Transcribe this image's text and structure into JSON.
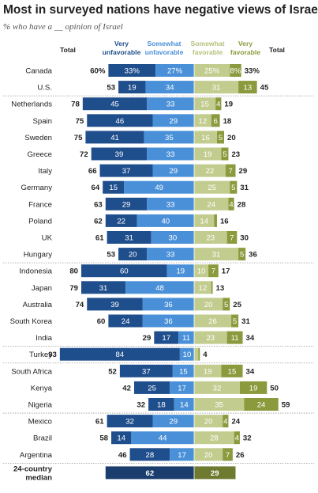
{
  "title": "Most in surveyed nations have negative views of Israel",
  "subtitle": "% who have a __ opinion of Israel",
  "colors": {
    "very_unfavorable": "#1f4e8c",
    "somewhat_unfavorable": "#4a90d9",
    "somewhat_favorable": "#c2cc8f",
    "very_favorable": "#8a9a3c",
    "median_unfavorable": "#1b3d6e",
    "median_favorable": "#6d7a2f"
  },
  "chart_data": {
    "type": "bar",
    "layout": "diverging-stacked-horizontal",
    "headers": {
      "total_left": "Total",
      "very_unfavorable": [
        "Very",
        "unfavorable"
      ],
      "somewhat_unfavorable": [
        "Somewhat",
        "unfavorable"
      ],
      "somewhat_favorable": [
        "Somewhat",
        "favorable"
      ],
      "very_favorable": [
        "Very",
        "favorable"
      ],
      "total_right": "Total"
    },
    "series": [
      {
        "name": "Very unfavorable",
        "key": "vu"
      },
      {
        "name": "Somewhat unfavorable",
        "key": "su"
      },
      {
        "name": "Somewhat favorable",
        "key": "sf"
      },
      {
        "name": "Very favorable",
        "key": "vf"
      }
    ],
    "groups": [
      [
        {
          "country": "Canada",
          "unfav_total": "60%",
          "vu": 33,
          "vu_label": "33%",
          "su": 27,
          "su_label": "27%",
          "sf": 25,
          "sf_label": "25%",
          "vf": 8,
          "vf_label": "8%",
          "fav_total": "33%"
        },
        {
          "country": "U.S.",
          "unfav_total": "53",
          "vu": 19,
          "vu_label": "19",
          "su": 34,
          "su_label": "34",
          "sf": 31,
          "sf_label": "31",
          "vf": 13,
          "vf_label": "13",
          "fav_total": "45"
        }
      ],
      [
        {
          "country": "Netherlands",
          "unfav_total": "78",
          "vu": 45,
          "vu_label": "45",
          "su": 33,
          "su_label": "33",
          "sf": 15,
          "sf_label": "15",
          "vf": 4,
          "vf_label": "4",
          "fav_total": "19"
        },
        {
          "country": "Spain",
          "unfav_total": "75",
          "vu": 46,
          "vu_label": "46",
          "su": 29,
          "su_label": "29",
          "sf": 12,
          "sf_label": "12",
          "vf": 6,
          "vf_label": "6",
          "fav_total": "18"
        },
        {
          "country": "Sweden",
          "unfav_total": "75",
          "vu": 41,
          "vu_label": "41",
          "su": 35,
          "su_label": "35",
          "sf": 16,
          "sf_label": "16",
          "vf": 5,
          "vf_label": "5",
          "fav_total": "20"
        },
        {
          "country": "Greece",
          "unfav_total": "72",
          "vu": 39,
          "vu_label": "39",
          "su": 33,
          "su_label": "33",
          "sf": 19,
          "sf_label": "19",
          "vf": 5,
          "vf_label": "5",
          "fav_total": "23"
        },
        {
          "country": "Italy",
          "unfav_total": "66",
          "vu": 37,
          "vu_label": "37",
          "su": 29,
          "su_label": "29",
          "sf": 22,
          "sf_label": "22",
          "vf": 7,
          "vf_label": "7",
          "fav_total": "29"
        },
        {
          "country": "Germany",
          "unfav_total": "64",
          "vu": 15,
          "vu_label": "15",
          "su": 49,
          "su_label": "49",
          "sf": 25,
          "sf_label": "25",
          "vf": 5,
          "vf_label": "5",
          "fav_total": "31"
        },
        {
          "country": "France",
          "unfav_total": "63",
          "vu": 29,
          "vu_label": "29",
          "su": 33,
          "su_label": "33",
          "sf": 24,
          "sf_label": "24",
          "vf": 4,
          "vf_label": "4",
          "fav_total": "28"
        },
        {
          "country": "Poland",
          "unfav_total": "62",
          "vu": 22,
          "vu_label": "22",
          "su": 40,
          "su_label": "40",
          "sf": 14,
          "sf_label": "14",
          "vf": 2,
          "vf_label": "",
          "fav_total": "16"
        },
        {
          "country": "UK",
          "unfav_total": "61",
          "vu": 31,
          "vu_label": "31",
          "su": 30,
          "su_label": "30",
          "sf": 23,
          "sf_label": "23",
          "vf": 7,
          "vf_label": "7",
          "fav_total": "30"
        },
        {
          "country": "Hungary",
          "unfav_total": "53",
          "vu": 20,
          "vu_label": "20",
          "su": 33,
          "su_label": "33",
          "sf": 31,
          "sf_label": "31",
          "vf": 5,
          "vf_label": "5",
          "fav_total": "36"
        }
      ],
      [
        {
          "country": "Indonesia",
          "unfav_total": "80",
          "vu": 60,
          "vu_label": "60",
          "su": 19,
          "su_label": "19",
          "sf": 10,
          "sf_label": "10",
          "vf": 7,
          "vf_label": "7",
          "fav_total": "17"
        },
        {
          "country": "Japan",
          "unfav_total": "79",
          "vu": 31,
          "vu_label": "31",
          "su": 48,
          "su_label": "48",
          "sf": 12,
          "sf_label": "12",
          "vf": 1,
          "vf_label": "",
          "fav_total": "13"
        },
        {
          "country": "Australia",
          "unfav_total": "74",
          "vu": 39,
          "vu_label": "39",
          "su": 36,
          "su_label": "36",
          "sf": 20,
          "sf_label": "20",
          "vf": 5,
          "vf_label": "5",
          "fav_total": "25"
        },
        {
          "country": "South Korea",
          "unfav_total": "60",
          "vu": 24,
          "vu_label": "24",
          "su": 36,
          "su_label": "36",
          "sf": 26,
          "sf_label": "26",
          "vf": 5,
          "vf_label": "5",
          "fav_total": "31"
        },
        {
          "country": "India",
          "unfav_total": "29",
          "vu": 17,
          "vu_label": "17",
          "su": 11,
          "su_label": "11",
          "sf": 23,
          "sf_label": "23",
          "vf": 11,
          "vf_label": "11",
          "fav_total": "34"
        }
      ],
      [
        {
          "country": "Turkey",
          "unfav_total": "93",
          "vu": 84,
          "vu_label": "84",
          "su": 10,
          "su_label": "10",
          "sf": 3,
          "sf_label": "",
          "vf": 1,
          "vf_label": "",
          "fav_total": "4"
        }
      ],
      [
        {
          "country": "South Africa",
          "unfav_total": "52",
          "vu": 37,
          "vu_label": "37",
          "su": 15,
          "su_label": "15",
          "sf": 19,
          "sf_label": "19",
          "vf": 15,
          "vf_label": "15",
          "fav_total": "34"
        },
        {
          "country": "Kenya",
          "unfav_total": "42",
          "vu": 25,
          "vu_label": "25",
          "su": 17,
          "su_label": "17",
          "sf": 32,
          "sf_label": "32",
          "vf": 19,
          "vf_label": "19",
          "fav_total": "50"
        },
        {
          "country": "Nigeria",
          "unfav_total": "32",
          "vu": 18,
          "vu_label": "18",
          "su": 14,
          "su_label": "14",
          "sf": 35,
          "sf_label": "35",
          "vf": 24,
          "vf_label": "24",
          "fav_total": "59"
        }
      ],
      [
        {
          "country": "Mexico",
          "unfav_total": "61",
          "vu": 32,
          "vu_label": "32",
          "su": 29,
          "su_label": "29",
          "sf": 20,
          "sf_label": "20",
          "vf": 4,
          "vf_label": "4",
          "fav_total": "24"
        },
        {
          "country": "Brazil",
          "unfav_total": "58",
          "vu": 14,
          "vu_label": "14",
          "su": 44,
          "su_label": "44",
          "sf": 28,
          "sf_label": "28",
          "vf": 4,
          "vf_label": "4",
          "fav_total": "32"
        },
        {
          "country": "Argentina",
          "unfav_total": "46",
          "vu": 28,
          "vu_label": "28",
          "su": 17,
          "su_label": "17",
          "sf": 20,
          "sf_label": "20",
          "vf": 7,
          "vf_label": "7",
          "fav_total": "26"
        }
      ]
    ],
    "median": {
      "label": [
        "24-country",
        "median"
      ],
      "unfav": 62,
      "unfav_label": "62",
      "fav": 29,
      "fav_label": "29"
    }
  }
}
